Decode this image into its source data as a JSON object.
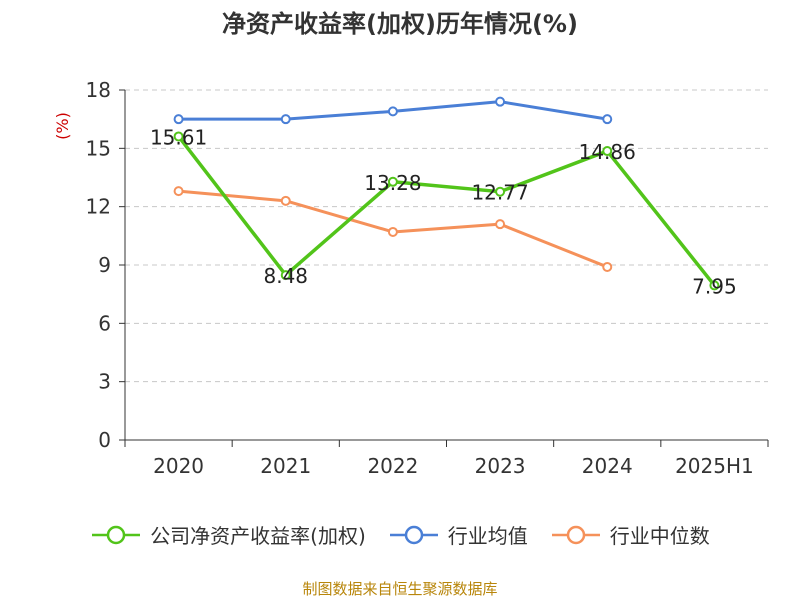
{
  "footer": {
    "source": "制图数据来自恒生聚源数据库"
  },
  "chart_data": {
    "type": "line",
    "title": "净资产收益率(加权)历年情况(%)",
    "ylabel": "(%)",
    "ylim": [
      0,
      18
    ],
    "yticks": [
      0,
      3,
      6,
      9,
      12,
      15,
      18
    ],
    "categories": [
      "2020",
      "2021",
      "2022",
      "2023",
      "2024",
      "2025H1"
    ],
    "grid": true,
    "legend_position": "bottom",
    "series": [
      {
        "name": "公司净资产收益率(加权)",
        "color": "#52c41a",
        "values": [
          15.61,
          8.48,
          13.28,
          12.77,
          14.86,
          7.95
        ],
        "labels": [
          "15.61",
          "8.48",
          "13.28",
          "12.77",
          "14.86",
          "7.95"
        ]
      },
      {
        "name": "行业均值",
        "color": "#4a7fd6",
        "values": [
          16.5,
          16.5,
          16.9,
          17.4,
          16.5,
          null
        ]
      },
      {
        "name": "行业中位数",
        "color": "#f5915a",
        "values": [
          12.8,
          12.3,
          10.7,
          11.1,
          8.9,
          null
        ]
      }
    ],
    "ylabel_color": "#cc0000"
  }
}
